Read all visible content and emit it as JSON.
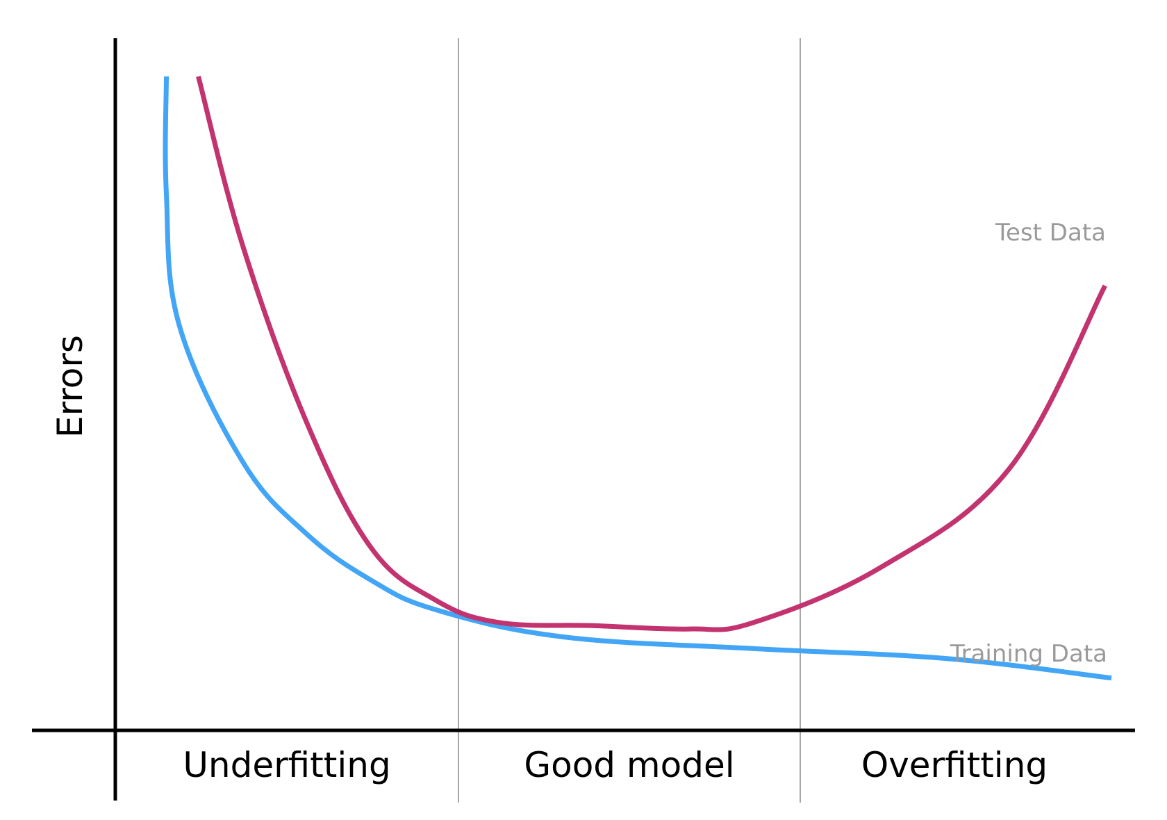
{
  "chart_data": {
    "type": "line",
    "title": "",
    "xlabel": "",
    "ylabel": "Errors",
    "grid": false,
    "legend": "inline labels at right end of each curve",
    "regions": [
      {
        "label": "Underfitting"
      },
      {
        "label": "Good model"
      },
      {
        "label": "Overfitting"
      }
    ],
    "colors": {
      "test": "#c2336f",
      "training": "#42a5f5",
      "divider": "#a6a6a6",
      "axis": "#000000",
      "series_label": "#9a9a9a"
    },
    "series": [
      {
        "name": "Test Data",
        "color": "#c2336f",
        "points": [
          [
            0.13,
            1.0
          ],
          [
            0.2,
            0.74
          ],
          [
            0.3,
            0.47
          ],
          [
            0.4,
            0.28
          ],
          [
            0.5,
            0.2
          ],
          [
            0.6,
            0.165
          ],
          [
            0.75,
            0.16
          ],
          [
            0.9,
            0.155
          ],
          [
            1.0,
            0.165
          ],
          [
            1.2,
            0.25
          ],
          [
            1.4,
            0.4
          ],
          [
            1.55,
            0.68
          ]
        ]
      },
      {
        "name": "Training Data",
        "color": "#42a5f5",
        "points": [
          [
            0.08,
            1.0
          ],
          [
            0.08,
            0.82
          ],
          [
            0.1,
            0.62
          ],
          [
            0.2,
            0.41
          ],
          [
            0.3,
            0.3
          ],
          [
            0.4,
            0.23
          ],
          [
            0.5,
            0.185
          ],
          [
            0.7,
            0.143
          ],
          [
            1.0,
            0.125
          ],
          [
            1.3,
            0.11
          ],
          [
            1.56,
            0.08
          ]
        ]
      }
    ],
    "xlim": [
      0,
      1.56
    ],
    "ylim": [
      0,
      1
    ]
  }
}
